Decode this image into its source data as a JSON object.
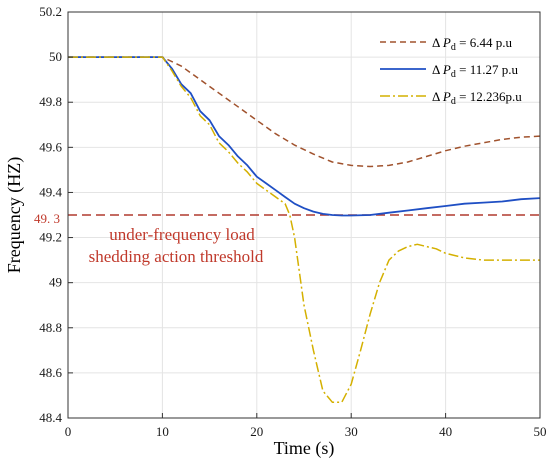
{
  "chart_data": {
    "type": "line",
    "xlabel": "Time (s)",
    "ylabel": "Frequency (HZ)",
    "xlim": [
      0,
      50
    ],
    "ylim": [
      48.4,
      50.2
    ],
    "xticks": [
      "0",
      "10",
      "20",
      "30",
      "40",
      "50"
    ],
    "yticks": [
      "48.4",
      "48.6",
      "48.8",
      "49",
      "49.2",
      "49.4",
      "49.6",
      "49.8",
      "50",
      "50.2"
    ],
    "grid": true,
    "legend_position": "top-right",
    "threshold": {
      "value": 49.3,
      "label": "49. 3",
      "color": "#b03a2e",
      "annotation_line1": "under-frequency load",
      "annotation_line2": "shedding action threshold"
    },
    "series": [
      {
        "name_prefix": "Δ ",
        "name_var": "P",
        "name_sub": "d",
        "name_value": " = 6.44 p.u",
        "color": "#a0522d",
        "dash": "6,4",
        "x": [
          0,
          10,
          12,
          14,
          16,
          18,
          20,
          22,
          24,
          26,
          28,
          30,
          32,
          34,
          36,
          38,
          40,
          42,
          44,
          46,
          48,
          50
        ],
        "y": [
          50.0,
          50.0,
          49.96,
          49.9,
          49.84,
          49.78,
          49.72,
          49.66,
          49.61,
          49.57,
          49.535,
          49.52,
          49.515,
          49.52,
          49.535,
          49.56,
          49.585,
          49.605,
          49.62,
          49.635,
          49.645,
          49.65
        ]
      },
      {
        "name_prefix": "Δ ",
        "name_var": "P",
        "name_sub": "d",
        "name_value": " = 11.27 p.u",
        "color": "#1f4fc4",
        "dash": "",
        "x": [
          0,
          10,
          11,
          12,
          13,
          14,
          15,
          16,
          17,
          18,
          19,
          20,
          21,
          22,
          23,
          24,
          25,
          26,
          27,
          28,
          29,
          30,
          32,
          34,
          36,
          38,
          40,
          42,
          44,
          46,
          48,
          50
        ],
        "y": [
          50.0,
          50.0,
          49.95,
          49.88,
          49.84,
          49.76,
          49.72,
          49.65,
          49.61,
          49.56,
          49.52,
          49.47,
          49.44,
          49.41,
          49.38,
          49.35,
          49.33,
          49.315,
          49.305,
          49.3,
          49.298,
          49.298,
          49.3,
          49.31,
          49.32,
          49.33,
          49.34,
          49.35,
          49.355,
          49.36,
          49.37,
          49.375
        ]
      },
      {
        "name_prefix": "Δ ",
        "name_var": "P",
        "name_sub": "d",
        "name_value": " = 12.236p.u",
        "color": "#d4b000",
        "dash": "10,3,2,3",
        "x": [
          0,
          10,
          11,
          12,
          13,
          14,
          15,
          16,
          17,
          18,
          19,
          20,
          21,
          22,
          23,
          23.5,
          24,
          24.5,
          25,
          26,
          27,
          28,
          29,
          30,
          31,
          32,
          33,
          34,
          35,
          36,
          37,
          38,
          39,
          40,
          42,
          44,
          46,
          48,
          50
        ],
        "y": [
          50.0,
          50.0,
          49.94,
          49.87,
          49.82,
          49.74,
          49.7,
          49.62,
          49.58,
          49.53,
          49.49,
          49.44,
          49.41,
          49.38,
          49.35,
          49.3,
          49.2,
          49.05,
          48.9,
          48.7,
          48.52,
          48.47,
          48.47,
          48.55,
          48.7,
          48.86,
          49.0,
          49.1,
          49.14,
          49.16,
          49.17,
          49.16,
          49.15,
          49.13,
          49.11,
          49.1,
          49.1,
          49.1,
          49.1
        ]
      }
    ]
  }
}
